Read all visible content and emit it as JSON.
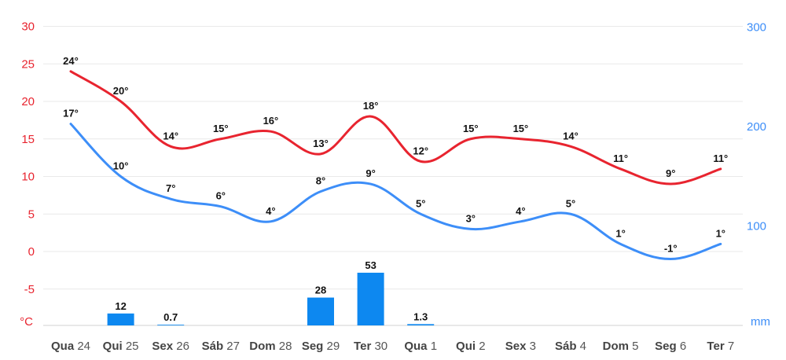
{
  "chart_data": {
    "type": "line",
    "categories": [
      {
        "day": "Qua",
        "num": "24"
      },
      {
        "day": "Qui",
        "num": "25"
      },
      {
        "day": "Sex",
        "num": "26"
      },
      {
        "day": "Sáb",
        "num": "27"
      },
      {
        "day": "Dom",
        "num": "28"
      },
      {
        "day": "Seg",
        "num": "29"
      },
      {
        "day": "Ter",
        "num": "30"
      },
      {
        "day": "Qua",
        "num": "1"
      },
      {
        "day": "Qui",
        "num": "2"
      },
      {
        "day": "Sex",
        "num": "3"
      },
      {
        "day": "Sáb",
        "num": "4"
      },
      {
        "day": "Dom",
        "num": "5"
      },
      {
        "day": "Seg",
        "num": "6"
      },
      {
        "day": "Ter",
        "num": "7"
      }
    ],
    "series": [
      {
        "name": "max",
        "axis": "left",
        "color": "#e8242f",
        "values": [
          24,
          20,
          14,
          15,
          16,
          13,
          18,
          12,
          15,
          15,
          14,
          11,
          9,
          11
        ],
        "labels": [
          "24°",
          "20°",
          "14°",
          "15°",
          "16°",
          "13°",
          "18°",
          "12°",
          "15°",
          "15°",
          "14°",
          "11°",
          "9°",
          "11°"
        ]
      },
      {
        "name": "min",
        "axis": "left",
        "color": "#3d8ef8",
        "values": [
          17,
          10,
          7,
          6,
          4,
          8,
          9,
          5,
          3,
          4,
          5,
          1,
          -1,
          1
        ],
        "labels": [
          "17°",
          "10°",
          "7°",
          "6°",
          "4°",
          "8°",
          "9°",
          "5°",
          "3°",
          "4°",
          "5°",
          "1°",
          "-1°",
          "1°"
        ]
      },
      {
        "name": "precipitation",
        "type": "bar",
        "axis": "right",
        "color": "#0d88f0",
        "values": [
          0,
          12,
          0.7,
          0,
          0,
          28,
          53,
          1.3,
          0,
          0,
          0,
          0,
          0,
          0
        ],
        "labels": [
          "",
          "12",
          "0.7",
          "",
          "",
          "28",
          "53",
          "1.3",
          "",
          "",
          "",
          "",
          "",
          ""
        ]
      }
    ],
    "y_left": {
      "ticks": [
        "30",
        "25",
        "20",
        "15",
        "10",
        "5",
        "0",
        "-5"
      ],
      "tick_values": [
        30,
        25,
        20,
        15,
        10,
        5,
        0,
        -5
      ],
      "unit": "°C",
      "ylim": [
        -10,
        30
      ],
      "color": "#e8242f"
    },
    "y_right": {
      "ticks": [
        "300",
        "200",
        "100"
      ],
      "tick_values": [
        300,
        200,
        100
      ],
      "unit": "mm",
      "ylim": [
        0,
        300
      ],
      "color": "#3d8ef8"
    },
    "grid": true
  }
}
